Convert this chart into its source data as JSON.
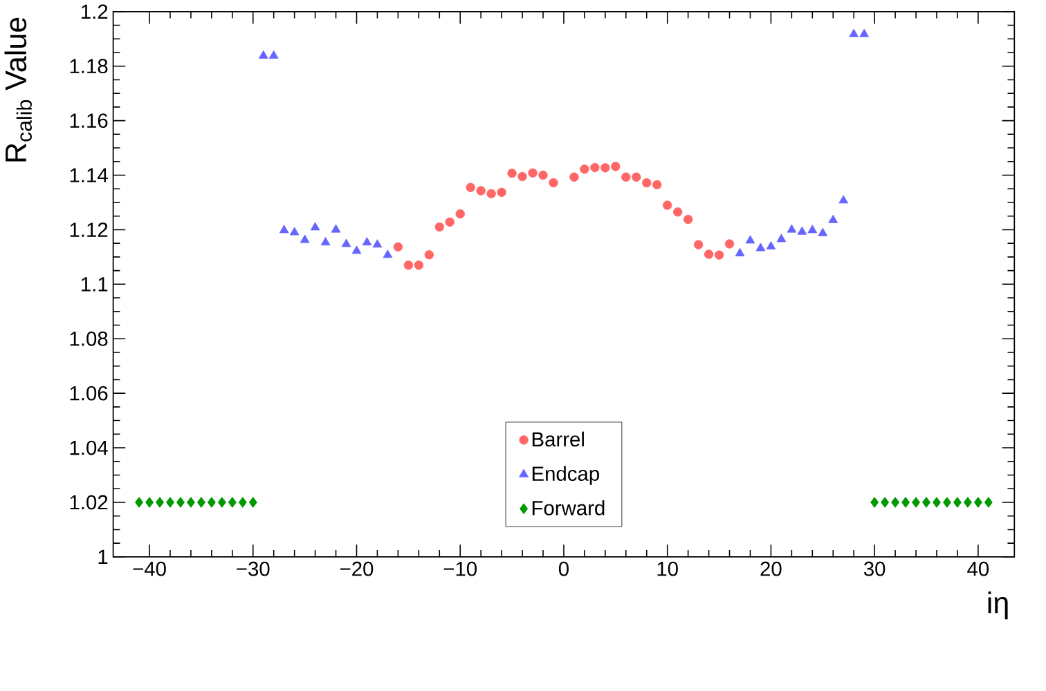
{
  "chart_data": {
    "type": "scatter",
    "xlabel": "iη",
    "ylabel": "R$_{calib}$ Value",
    "xlim": [
      -43.5,
      43.5
    ],
    "ylim": [
      1,
      1.2
    ],
    "xticks": [
      {
        "value": -40,
        "label": "−40"
      },
      {
        "value": -30,
        "label": "−30"
      },
      {
        "value": -20,
        "label": "−20"
      },
      {
        "value": -10,
        "label": "−10"
      },
      0,
      10,
      20,
      30,
      40
    ],
    "yticks": [
      1,
      1.02,
      1.04,
      1.06,
      1.08,
      1.1,
      1.12,
      1.14,
      1.16,
      1.18,
      1.2
    ],
    "grid": false,
    "legend": "bottom",
    "series": [
      {
        "name": "Barrel",
        "color": "#ff6666",
        "marker": "circle",
        "x": [
          -16,
          -15,
          -14,
          -13,
          -12,
          -11,
          -10,
          -9,
          -8,
          -7,
          -6,
          -5,
          -4,
          -3,
          -2,
          -1,
          1,
          2,
          3,
          4,
          5,
          6,
          7,
          8,
          9,
          10,
          11,
          12,
          13,
          14,
          15,
          16
        ],
        "values": [
          1.1137,
          1.107,
          1.107,
          1.1108,
          1.121,
          1.1228,
          1.1258,
          1.1355,
          1.1343,
          1.1332,
          1.1337,
          1.1407,
          1.1395,
          1.1408,
          1.14,
          1.1372,
          1.1393,
          1.1422,
          1.1428,
          1.1427,
          1.1432,
          1.1393,
          1.1393,
          1.1372,
          1.1365,
          1.129,
          1.1265,
          1.1238,
          1.1145,
          1.111,
          1.1107,
          1.1148
        ]
      },
      {
        "name": "Endcap",
        "color": "#6666ff",
        "marker": "triangle",
        "x": [
          -29,
          -28,
          -27,
          -26,
          -25,
          -24,
          -23,
          -22,
          -21,
          -20,
          -19,
          -18,
          -17,
          17,
          18,
          19,
          20,
          21,
          22,
          23,
          24,
          25,
          26,
          27,
          28,
          29
        ],
        "values": [
          1.1838,
          1.1838,
          1.1198,
          1.119,
          1.1162,
          1.1208,
          1.1153,
          1.12,
          1.1147,
          1.1122,
          1.1153,
          1.1145,
          1.1107,
          1.1113,
          1.116,
          1.1132,
          1.1138,
          1.1165,
          1.12,
          1.1192,
          1.1198,
          1.1187,
          1.1235,
          1.1307,
          1.1917,
          1.1917
        ]
      },
      {
        "name": "Forward",
        "color": "#009900",
        "marker": "diamond",
        "x": [
          -41,
          -40,
          -39,
          -38,
          -37,
          -36,
          -35,
          -34,
          -33,
          -32,
          -31,
          -30,
          30,
          31,
          32,
          33,
          34,
          35,
          36,
          37,
          38,
          39,
          40,
          41
        ],
        "values": [
          1.02,
          1.02,
          1.02,
          1.02,
          1.02,
          1.02,
          1.02,
          1.02,
          1.02,
          1.02,
          1.02,
          1.02,
          1.02,
          1.02,
          1.02,
          1.02,
          1.02,
          1.02,
          1.02,
          1.02,
          1.02,
          1.02,
          1.02,
          1.02
        ]
      }
    ]
  }
}
